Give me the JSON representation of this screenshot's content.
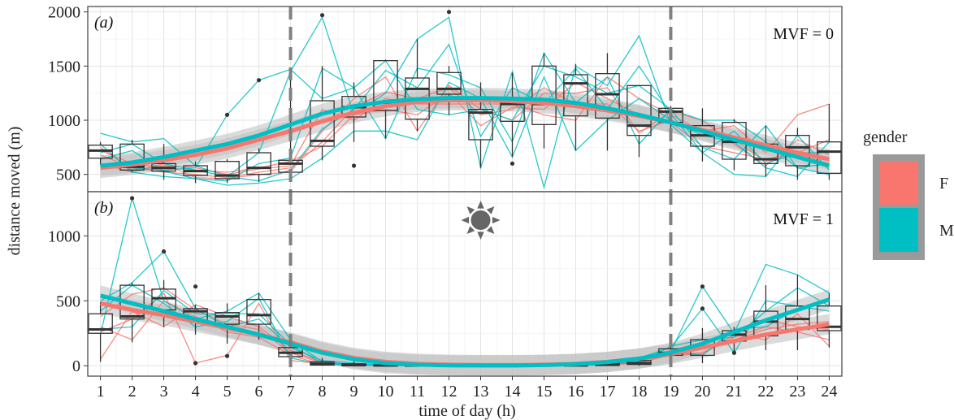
{
  "chart_data": {
    "type": "line",
    "xlabel": "time of day (h)",
    "ylabel": "distance moved (m)",
    "x": [
      1,
      2,
      3,
      4,
      5,
      6,
      7,
      8,
      9,
      10,
      11,
      12,
      13,
      14,
      15,
      16,
      17,
      18,
      19,
      20,
      21,
      22,
      23,
      24
    ],
    "x_ticks": [
      "1",
      "2",
      "3",
      "4",
      "5",
      "6",
      "7",
      "8",
      "9",
      "10",
      "11",
      "12",
      "13",
      "14",
      "15",
      "16",
      "17",
      "18",
      "19",
      "20",
      "21",
      "22",
      "23",
      "24"
    ],
    "vertical_dashed_lines_x": [
      7,
      19
    ],
    "legend": {
      "title": "gender",
      "placement": "right",
      "entries": [
        {
          "label": "F",
          "color": "#F8766D"
        },
        {
          "label": "M",
          "color": "#00BFC4"
        }
      ]
    },
    "colors": {
      "F": "#F8766D",
      "M": "#00BFC4",
      "ribbon": "#bdbdbd"
    },
    "panels": [
      {
        "label": "(a)",
        "annotation": "MVF = 0",
        "ylim": [
          340,
          2050
        ],
        "yticks": [
          500,
          1000,
          1500,
          2000
        ],
        "smooth_F": [
          560,
          590,
          630,
          680,
          740,
          820,
          900,
          990,
          1070,
          1130,
          1170,
          1185,
          1185,
          1175,
          1160,
          1130,
          1090,
          1040,
          980,
          910,
          840,
          770,
          700,
          640
        ],
        "smooth_M": [
          580,
          610,
          660,
          720,
          780,
          860,
          960,
          1060,
          1130,
          1170,
          1195,
          1205,
          1205,
          1200,
          1190,
          1160,
          1110,
          1050,
          980,
          900,
          820,
          740,
          660,
          580
        ],
        "boxes": [
          {
            "q1": 650,
            "med": 720,
            "q3": 770,
            "lo": 590,
            "hi": 800
          },
          {
            "q1": 540,
            "med": 570,
            "q3": 780,
            "lo": 520,
            "hi": 820
          },
          {
            "q1": 530,
            "med": 560,
            "q3": 600,
            "lo": 450,
            "hi": 780
          },
          {
            "q1": 490,
            "med": 530,
            "q3": 580,
            "lo": 420,
            "hi": 620
          },
          {
            "q1": 460,
            "med": 490,
            "q3": 620,
            "lo": 420,
            "hi": 640
          },
          {
            "q1": 500,
            "med": 560,
            "q3": 700,
            "lo": 430,
            "hi": 740
          },
          {
            "q1": 520,
            "med": 600,
            "q3": 630,
            "lo": 460,
            "hi": 1470
          },
          {
            "q1": 760,
            "med": 810,
            "q3": 1180,
            "lo": 630,
            "hi": 1500
          },
          {
            "q1": 1030,
            "med": 1120,
            "q3": 1220,
            "lo": 800,
            "hi": 1350
          },
          {
            "q1": 1090,
            "med": 1160,
            "q3": 1550,
            "lo": 830,
            "hi": 1560
          },
          {
            "q1": 1010,
            "med": 1290,
            "q3": 1390,
            "lo": 900,
            "hi": 1750
          },
          {
            "q1": 1240,
            "med": 1290,
            "q3": 1440,
            "lo": 1050,
            "hi": 1500
          },
          {
            "q1": 820,
            "med": 1070,
            "q3": 1100,
            "lo": 560,
            "hi": 1350
          },
          {
            "q1": 990,
            "med": 1150,
            "q3": 1200,
            "lo": 660,
            "hi": 1440
          },
          {
            "q1": 960,
            "med": 1150,
            "q3": 1500,
            "lo": 740,
            "hi": 1620
          },
          {
            "q1": 1040,
            "med": 1340,
            "q3": 1420,
            "lo": 720,
            "hi": 1520
          },
          {
            "q1": 1020,
            "med": 1240,
            "q3": 1430,
            "lo": 720,
            "hi": 1620
          },
          {
            "q1": 860,
            "med": 950,
            "q3": 1320,
            "lo": 660,
            "hi": 1320
          },
          {
            "q1": 980,
            "med": 1080,
            "q3": 1110,
            "lo": 900,
            "hi": 1130
          },
          {
            "q1": 760,
            "med": 860,
            "q3": 950,
            "lo": 620,
            "hi": 1110
          },
          {
            "q1": 640,
            "med": 800,
            "q3": 980,
            "lo": 540,
            "hi": 1010
          },
          {
            "q1": 600,
            "med": 640,
            "q3": 780,
            "lo": 480,
            "hi": 950
          },
          {
            "q1": 580,
            "med": 750,
            "q3": 860,
            "lo": 450,
            "hi": 930
          },
          {
            "q1": 510,
            "med": 710,
            "q3": 800,
            "lo": 450,
            "hi": 1150
          }
        ],
        "outliers": [
          [
            5,
            1050
          ],
          [
            6,
            1370
          ],
          [
            8,
            1970
          ],
          [
            9,
            580
          ],
          [
            12,
            2000
          ],
          [
            14,
            600
          ]
        ],
        "individuals": [
          {
            "gender": "F",
            "y": [
              680,
              560,
              520,
              500,
              470,
              520,
              560,
              800,
              1120,
              1260,
              1200,
              1300,
              1050,
              1100,
              1300,
              1150,
              1150,
              900,
              1000,
              880,
              820,
              620,
              680,
              600
            ]
          },
          {
            "gender": "F",
            "y": [
              720,
              600,
              560,
              540,
              520,
              560,
              620,
              760,
              1050,
              1100,
              1050,
              1250,
              950,
              1120,
              1100,
              1350,
              1200,
              1050,
              980,
              760,
              700,
              640,
              700,
              820
            ]
          },
          {
            "gender": "F",
            "y": [
              600,
              520,
              600,
              470,
              460,
              500,
              520,
              900,
              1200,
              1400,
              900,
              1320,
              1100,
              1000,
              1250,
              1250,
              1300,
              880,
              1080,
              1000,
              780,
              580,
              820,
              680
            ]
          },
          {
            "gender": "F",
            "y": [
              750,
              540,
              580,
              560,
              500,
              550,
              580,
              1100,
              1000,
              1200,
              1150,
              1150,
              1150,
              1150,
              1050,
              1000,
              1400,
              1200,
              1050,
              900,
              950,
              700,
              1050,
              1150
            ]
          },
          {
            "gender": "M",
            "y": [
              880,
              800,
              830,
              580,
              480,
              700,
              1450,
              1950,
              1050,
              1250,
              1750,
              1950,
              560,
              1450,
              380,
              1500,
              1320,
              1780,
              960,
              700,
              500,
              480,
              860,
              540
            ]
          },
          {
            "gender": "M",
            "y": [
              640,
              720,
              530,
              460,
              440,
              600,
              650,
              1480,
              1300,
              830,
              1480,
              1420,
              1300,
              800,
              1620,
              1160,
              1400,
              780,
              1100,
              1000,
              1000,
              800,
              560,
              600
            ]
          },
          {
            "gender": "M",
            "y": [
              580,
              560,
              540,
              560,
              1050,
              1370,
              1470,
              1200,
              1300,
              1550,
              1100,
              1050,
              1100,
              1000,
              1500,
              1400,
              1250,
              1320,
              1100,
              750,
              640,
              950,
              560,
              500
            ]
          },
          {
            "gender": "M",
            "y": [
              780,
              520,
              480,
              460,
              400,
              420,
              460,
              650,
              900,
              900,
              820,
              1350,
              1200,
              660,
              1400,
              720,
              1000,
              1200,
              1000,
              860,
              800,
              560,
              480,
              800
            ]
          },
          {
            "gender": "M",
            "y": [
              700,
              780,
              600,
              540,
              480,
              440,
              540,
              920,
              1100,
              1460,
              1300,
              1700,
              850,
              1300,
              1150,
              1480,
              1100,
              1500,
              1060,
              700,
              900,
              600,
              700,
              700
            ]
          }
        ]
      },
      {
        "label": "(b)",
        "annotation": "MVF = 1",
        "ylim": [
          -80,
          1340
        ],
        "yticks": [
          0,
          500,
          1000
        ],
        "smooth_F": [
          480,
          430,
          390,
          340,
          290,
          240,
          180,
          110,
          60,
          30,
          15,
          8,
          5,
          5,
          8,
          15,
          30,
          55,
          90,
          140,
          190,
          240,
          280,
          320
        ],
        "smooth_M": [
          540,
          480,
          420,
          360,
          300,
          240,
          170,
          100,
          50,
          20,
          8,
          3,
          2,
          2,
          5,
          12,
          28,
          55,
          100,
          170,
          260,
          350,
          430,
          510
        ],
        "boxes": [
          {
            "q1": 250,
            "med": 280,
            "q3": 400,
            "lo": 30,
            "hi": 490
          },
          {
            "q1": 360,
            "med": 380,
            "q3": 620,
            "lo": 180,
            "hi": 640
          },
          {
            "q1": 430,
            "med": 520,
            "q3": 590,
            "lo": 300,
            "hi": 660
          },
          {
            "q1": 350,
            "med": 420,
            "q3": 440,
            "lo": 240,
            "hi": 470
          },
          {
            "q1": 320,
            "med": 380,
            "q3": 410,
            "lo": 170,
            "hi": 480
          },
          {
            "q1": 320,
            "med": 390,
            "q3": 510,
            "lo": 200,
            "hi": 560
          },
          {
            "q1": 70,
            "med": 100,
            "q3": 140,
            "lo": 20,
            "hi": 230
          },
          {
            "q1": 5,
            "med": 15,
            "q3": 30,
            "lo": 0,
            "hi": 60
          },
          {
            "q1": 0,
            "med": 5,
            "q3": 15,
            "lo": 0,
            "hi": 40
          },
          {
            "q1": 0,
            "med": 2,
            "q3": 5,
            "lo": 0,
            "hi": 10
          },
          {
            "q1": 0,
            "med": 1,
            "q3": 3,
            "lo": 0,
            "hi": 6
          },
          {
            "q1": 0,
            "med": 0,
            "q3": 2,
            "lo": 0,
            "hi": 4
          },
          {
            "q1": 0,
            "med": 0,
            "q3": 2,
            "lo": 0,
            "hi": 4
          },
          {
            "q1": 0,
            "med": 0,
            "q3": 2,
            "lo": 0,
            "hi": 4
          },
          {
            "q1": 0,
            "med": 1,
            "q3": 3,
            "lo": 0,
            "hi": 6
          },
          {
            "q1": 0,
            "med": 2,
            "q3": 6,
            "lo": 0,
            "hi": 12
          },
          {
            "q1": 2,
            "med": 8,
            "q3": 20,
            "lo": 0,
            "hi": 35
          },
          {
            "q1": 10,
            "med": 20,
            "q3": 40,
            "lo": 0,
            "hi": 70
          },
          {
            "q1": 80,
            "med": 100,
            "q3": 130,
            "lo": 40,
            "hi": 160
          },
          {
            "q1": 80,
            "med": 150,
            "q3": 200,
            "lo": 20,
            "hi": 290
          },
          {
            "q1": 190,
            "med": 240,
            "q3": 270,
            "lo": 100,
            "hi": 300
          },
          {
            "q1": 230,
            "med": 340,
            "q3": 420,
            "lo": 120,
            "hi": 620
          },
          {
            "q1": 280,
            "med": 360,
            "q3": 460,
            "lo": 120,
            "hi": 700
          },
          {
            "q1": 270,
            "med": 300,
            "q3": 460,
            "lo": 140,
            "hi": 560
          }
        ],
        "outliers": [
          [
            2,
            1290
          ],
          [
            3,
            880
          ],
          [
            4,
            610
          ],
          [
            4,
            20
          ],
          [
            5,
            75
          ],
          [
            20,
            610
          ],
          [
            20,
            440
          ],
          [
            21,
            100
          ]
        ],
        "individuals": [
          {
            "gender": "F",
            "y": [
              380,
              550,
              600,
              430,
              320,
              280,
              100,
              20,
              5,
              2,
              0,
              0,
              0,
              0,
              0,
              2,
              10,
              30,
              100,
              150,
              200,
              280,
              320,
              340
            ]
          },
          {
            "gender": "F",
            "y": [
              300,
              200,
              500,
              380,
              260,
              220,
              80,
              10,
              5,
              2,
              0,
              0,
              0,
              0,
              0,
              2,
              5,
              20,
              90,
              100,
              220,
              300,
              260,
              200
            ]
          },
          {
            "gender": "F",
            "y": [
              50,
              420,
              300,
              470,
              380,
              300,
              120,
              25,
              10,
              3,
              1,
              0,
              0,
              0,
              1,
              3,
              12,
              40,
              120,
              180,
              260,
              360,
              300,
              280
            ]
          },
          {
            "gender": "F",
            "y": [
              260,
              360,
              560,
              20,
              80,
              480,
              40,
              15,
              5,
              1,
              0,
              0,
              0,
              0,
              0,
              2,
              8,
              25,
              80,
              90,
              240,
              200,
              400,
              150
            ]
          },
          {
            "gender": "M",
            "y": [
              240,
              1290,
              500,
              360,
              420,
              560,
              200,
              30,
              10,
              2,
              0,
              0,
              0,
              0,
              0,
              3,
              15,
              50,
              110,
              610,
              250,
              780,
              700,
              560
            ]
          },
          {
            "gender": "M",
            "y": [
              500,
              640,
              880,
              440,
              300,
              360,
              140,
              40,
              20,
              5,
              2,
              0,
              0,
              0,
              2,
              5,
              20,
              60,
              140,
              440,
              100,
              500,
              460,
              420
            ]
          },
          {
            "gender": "M",
            "y": [
              280,
              300,
              580,
              400,
              400,
              400,
              160,
              20,
              10,
              3,
              1,
              0,
              0,
              0,
              1,
              4,
              25,
              55,
              110,
              80,
              280,
              300,
              440,
              520
            ]
          },
          {
            "gender": "M",
            "y": [
              420,
              620,
              480,
              300,
              340,
              520,
              60,
              10,
              5,
              2,
              1,
              0,
              0,
              0,
              1,
              2,
              10,
              30,
              150,
              200,
              220,
              420,
              600,
              460
            ]
          }
        ]
      }
    ]
  }
}
